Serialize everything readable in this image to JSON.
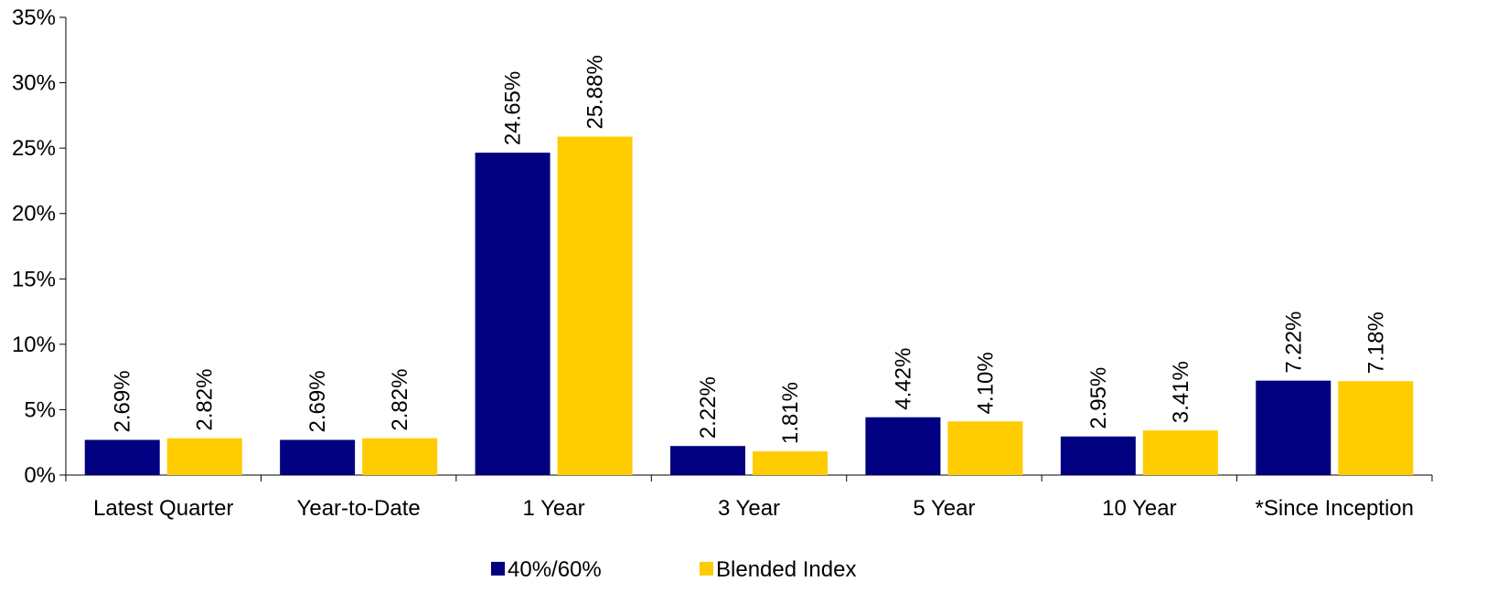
{
  "chart_data": {
    "type": "bar",
    "title": "",
    "xlabel": "",
    "ylabel": "",
    "ylim": [
      0,
      35
    ],
    "y_ticks": [
      0,
      5,
      10,
      15,
      20,
      25,
      30,
      35
    ],
    "y_tick_format": "percent",
    "grid": false,
    "legend_position": "bottom",
    "categories": [
      "Latest Quarter",
      "Year-to-Date",
      "1 Year",
      "3 Year",
      "5 Year",
      "10 Year",
      "*Since Inception"
    ],
    "series": [
      {
        "name": "40%/60%",
        "color": "#000080",
        "values": [
          2.69,
          2.69,
          24.65,
          2.22,
          4.42,
          2.95,
          7.22
        ],
        "labels": [
          "2.69%",
          "2.69%",
          "24.65%",
          "2.22%",
          "4.42%",
          "2.95%",
          "7.22%"
        ]
      },
      {
        "name": "Blended Index",
        "color": "#FFCC00",
        "values": [
          2.82,
          2.82,
          25.88,
          1.81,
          4.1,
          3.41,
          7.18
        ],
        "labels": [
          "2.82%",
          "2.82%",
          "25.88%",
          "1.81%",
          "4.10%",
          "3.41%",
          "7.18%"
        ]
      }
    ]
  }
}
